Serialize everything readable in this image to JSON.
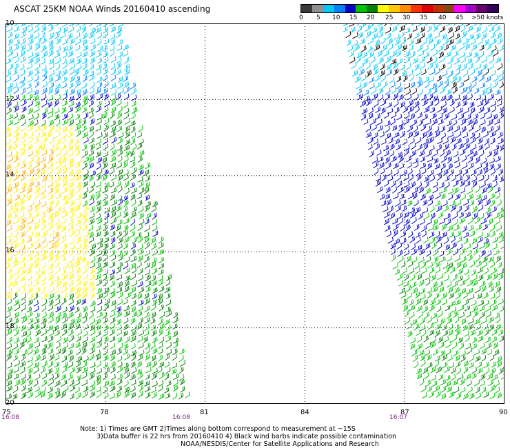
{
  "title": "ASCAT 25KM NOAA Winds 20160410 ascending",
  "legend": {
    "colors": [
      "#3a3a3a",
      "#8f8f8f",
      "#00c8f5",
      "#0080ff",
      "#0000c8",
      "#00c000",
      "#008000",
      "#ffff00",
      "#ffc800",
      "#ff8c00",
      "#ff3000",
      "#e00000",
      "#c03000",
      "#8b4513",
      "#ff00ff",
      "#a000c8",
      "#6a006a",
      "#30005a"
    ],
    "labels": [
      "0",
      "5",
      "10",
      "15",
      "20",
      "25",
      "30",
      "35",
      "40",
      "45",
      ">50 knots"
    ]
  },
  "lat_labels": [
    "10",
    "12",
    "14",
    "16",
    "18",
    "20"
  ],
  "lon_labels": [
    "75",
    "78",
    "81",
    "84",
    "87",
    "90"
  ],
  "time_labels": [
    "16:08",
    "16:08",
    "16:07"
  ],
  "notes": [
    "Note: 1) Times are GMT 2)Times along bottom correspond to measurement at ~15S",
    "3)Data buffer is 22 hrs from 20160410 4) Black wind barbs indicate possible contamination",
    "NOAA/NESDIS/Center for Satellite Applications and Research"
  ],
  "palette": {
    "light_blue": "#00c8f5",
    "blue": "#0080ff",
    "dark_blue": "#0000c8",
    "green": "#00c000",
    "dark_green": "#008000",
    "yellow": "#ffee00",
    "orange": "#ffb000",
    "black": "#000000"
  }
}
